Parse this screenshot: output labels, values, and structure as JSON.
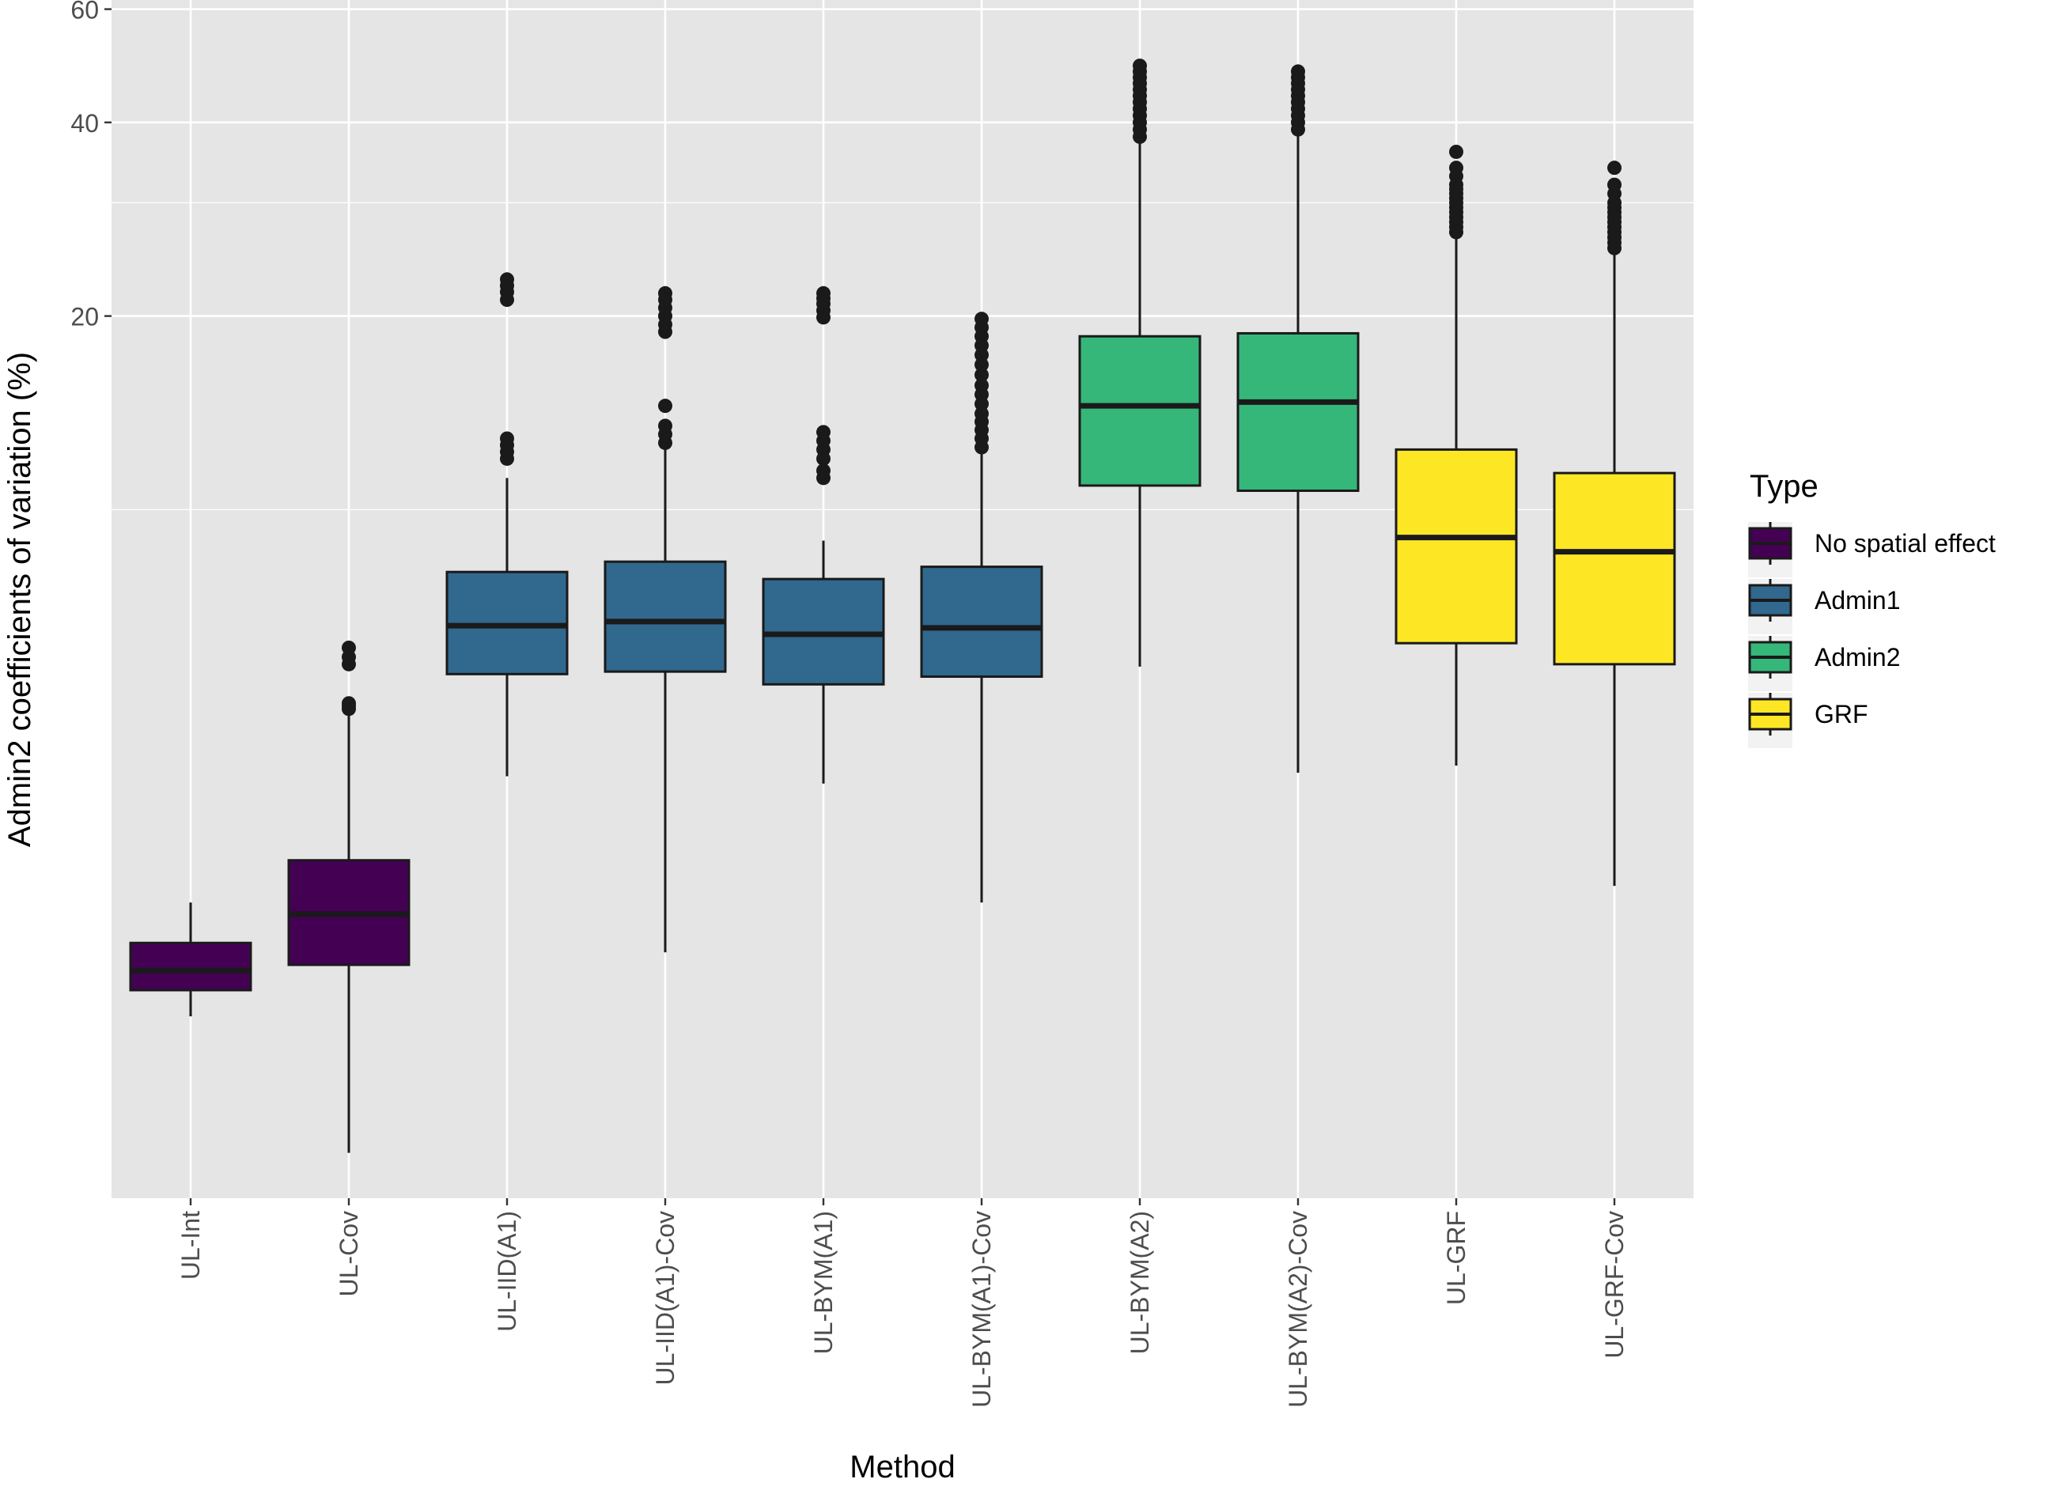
{
  "chart_data": {
    "type": "boxplot",
    "xlabel": "Method",
    "ylabel": "Admin2 coefficients of variation (%)",
    "y_scale": "log",
    "ylim": [
      0.85,
      62
    ],
    "y_ticks": [
      20,
      40,
      60
    ],
    "y_minor_gridlines": [
      10,
      30
    ],
    "grid": true,
    "legend": {
      "title": "Type",
      "position": "right",
      "entries": [
        {
          "label": "No spatial effect",
          "color": "#440154"
        },
        {
          "label": "Admin1",
          "color": "#31688E"
        },
        {
          "label": "Admin2",
          "color": "#35B779"
        },
        {
          "label": "GRF",
          "color": "#FDE725"
        }
      ]
    },
    "categories": [
      "UL-Int",
      "UL-Cov",
      "UL-IID(A1)",
      "UL-IID(A1)-Cov",
      "UL-BYM(A1)",
      "UL-BYM(A1)-Cov",
      "UL-BYM(A2)",
      "UL-BYM(A2)-Cov",
      "UL-GRF",
      "UL-GRF-Cov"
    ],
    "series": [
      {
        "category": "UL-Int",
        "type": "No spatial effect",
        "whisker_low": 1.63,
        "q1": 1.79,
        "median": 1.92,
        "q3": 2.12,
        "whisker_high": 2.45,
        "outliers": []
      },
      {
        "category": "UL-Cov",
        "type": "No spatial effect",
        "whisker_low": 1.0,
        "q1": 1.96,
        "median": 2.35,
        "q3": 2.85,
        "whisker_high": 4.8,
        "outliers": [
          4.9,
          4.95,
          5.0,
          5.75,
          5.9,
          6.1
        ]
      },
      {
        "category": "UL-IID(A1)",
        "type": "Admin1",
        "whisker_low": 3.85,
        "q1": 5.55,
        "median": 6.6,
        "q3": 8.0,
        "whisker_high": 11.2,
        "outliers": [
          12.0,
          12.3,
          12.6,
          12.9,
          21.2,
          21.8,
          22.3,
          22.8
        ]
      },
      {
        "category": "UL-IID(A1)-Cov",
        "type": "Admin1",
        "whisker_low": 2.05,
        "q1": 5.6,
        "median": 6.7,
        "q3": 8.3,
        "whisker_high": 12.5,
        "outliers": [
          12.7,
          13.1,
          13.5,
          14.5,
          18.9,
          19.4,
          20.0,
          20.6,
          21.2,
          21.7
        ]
      },
      {
        "category": "UL-BYM(A1)",
        "type": "Admin1",
        "whisker_low": 3.75,
        "q1": 5.35,
        "median": 6.4,
        "q3": 7.8,
        "whisker_high": 8.95,
        "outliers": [
          11.2,
          11.5,
          12.0,
          12.4,
          12.8,
          13.2,
          19.9,
          20.4,
          20.9,
          21.3,
          21.7
        ]
      },
      {
        "category": "UL-BYM(A1)-Cov",
        "type": "Admin1",
        "whisker_low": 2.45,
        "q1": 5.5,
        "median": 6.55,
        "q3": 8.15,
        "whisker_high": 12.2,
        "outliers": [
          12.5,
          12.9,
          13.3,
          13.7,
          14.1,
          14.6,
          15.1,
          15.6,
          16.2,
          16.8,
          17.4,
          18.0,
          18.6,
          19.2,
          19.8
        ]
      },
      {
        "category": "UL-BYM(A2)",
        "type": "Admin2",
        "whisker_low": 5.7,
        "q1": 10.9,
        "median": 14.5,
        "q3": 18.6,
        "whisker_high": 37.5,
        "outliers": [
          38.0,
          39.0,
          40.0,
          41.0,
          42.0,
          43.0,
          44.0,
          45.0,
          46.0,
          47.0,
          48.0,
          49.0
        ]
      },
      {
        "category": "UL-BYM(A2)-Cov",
        "type": "Admin2",
        "whisker_low": 3.9,
        "q1": 10.7,
        "median": 14.7,
        "q3": 18.8,
        "whisker_high": 38.5,
        "outliers": [
          39.0,
          40.0,
          41.0,
          42.0,
          43.0,
          44.0,
          45.0,
          46.0,
          47.0,
          48.0
        ]
      },
      {
        "category": "UL-GRF",
        "type": "GRF",
        "whisker_low": 4.0,
        "q1": 6.2,
        "median": 9.05,
        "q3": 12.4,
        "whisker_high": 26.5,
        "outliers": [
          27.0,
          27.5,
          28.0,
          28.5,
          29.0,
          29.5,
          30.0,
          30.5,
          31.0,
          31.5,
          32.0,
          33.0,
          34.0,
          36.0
        ]
      },
      {
        "category": "UL-GRF-Cov",
        "type": "GRF",
        "whisker_low": 2.6,
        "q1": 5.75,
        "median": 8.6,
        "q3": 11.4,
        "whisker_high": 25.0,
        "outliers": [
          25.5,
          26.0,
          26.5,
          27.0,
          27.5,
          28.0,
          28.5,
          29.0,
          29.5,
          30.0,
          31.0,
          32.0,
          34.0
        ]
      }
    ]
  }
}
